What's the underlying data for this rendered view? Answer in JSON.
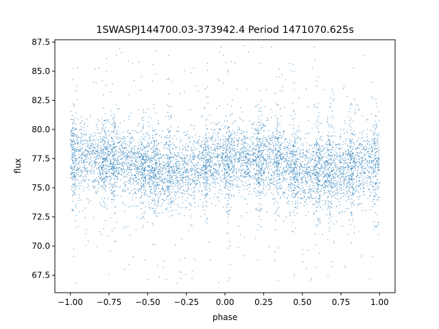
{
  "chart_data": {
    "type": "scatter",
    "title": "1SWASPJ144700.03-373942.4 Period 1471070.625s",
    "xlabel": "phase",
    "ylabel": "flux",
    "xlim": [
      -1.1,
      1.1
    ],
    "ylim": [
      66.0,
      87.7
    ],
    "xticks": [
      -1.0,
      -0.75,
      -0.5,
      -0.25,
      0.0,
      0.25,
      0.5,
      0.75,
      1.0
    ],
    "xtick_labels": [
      "−1.00",
      "−0.75",
      "−0.50",
      "−0.25",
      "0.00",
      "0.25",
      "0.50",
      "0.75",
      "1.00"
    ],
    "yticks": [
      67.5,
      70.0,
      72.5,
      75.0,
      77.5,
      80.0,
      82.5,
      85.0,
      87.5
    ],
    "ytick_labels": [
      "67.5",
      "70.0",
      "72.5",
      "75.0",
      "77.5",
      "80.0",
      "82.5",
      "85.0",
      "87.5"
    ],
    "grid": false,
    "legend": "none",
    "marker_color": "#1f77b4",
    "series": [
      {
        "x_range": [
          -1.0,
          1.0
        ],
        "flux_center": 77.0,
        "flux_core_range": [
          73.0,
          80.5
        ],
        "flux_outlier_range": [
          66.8,
          87.2
        ],
        "dense_vertical_streaks_at_phase": [
          -0.98,
          -0.78,
          -0.72,
          -0.53,
          -0.46,
          -0.36,
          -0.12,
          0.02,
          0.22,
          0.34,
          0.45,
          0.6,
          0.68,
          0.82,
          0.98
        ]
      }
    ]
  }
}
